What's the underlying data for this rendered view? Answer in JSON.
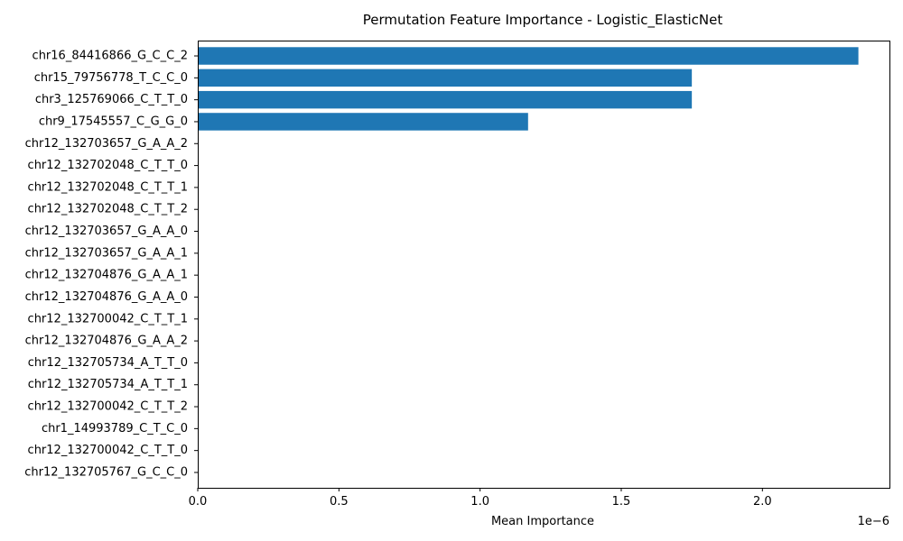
{
  "chart_data": {
    "type": "bar",
    "orientation": "horizontal",
    "title": "Permutation Feature Importance - Logistic_ElasticNet",
    "xlabel": "Mean Importance",
    "ylabel": "",
    "scale_note": "1e−6",
    "xlim": [
      0,
      2.45
    ],
    "x_ticks": [
      0,
      0.5,
      1.0,
      1.5,
      2.0
    ],
    "x_tick_labels": [
      "0.0",
      "0.5",
      "1.0",
      "1.5",
      "2.0"
    ],
    "bar_color": "#1f77b4",
    "grid": false,
    "categories": [
      "chr16_84416866_G_C_C_2",
      "chr15_79756778_T_C_C_0",
      "chr3_125769066_C_T_T_0",
      "chr9_17545557_C_G_G_0",
      "chr12_132703657_G_A_A_2",
      "chr12_132702048_C_T_T_0",
      "chr12_132702048_C_T_T_1",
      "chr12_132702048_C_T_T_2",
      "chr12_132703657_G_A_A_0",
      "chr12_132703657_G_A_A_1",
      "chr12_132704876_G_A_A_1",
      "chr12_132704876_G_A_A_0",
      "chr12_132700042_C_T_T_1",
      "chr12_132704876_G_A_A_2",
      "chr12_132705734_A_T_T_0",
      "chr12_132705734_A_T_T_1",
      "chr12_132700042_C_T_T_2",
      "chr1_14993789_C_T_C_0",
      "chr12_132700042_C_T_T_0",
      "chr12_132705767_G_C_C_0"
    ],
    "values": [
      2.34,
      1.75,
      1.75,
      1.17,
      0,
      0,
      0,
      0,
      0,
      0,
      0,
      0,
      0,
      0,
      0,
      0,
      0,
      0,
      0,
      0
    ]
  }
}
